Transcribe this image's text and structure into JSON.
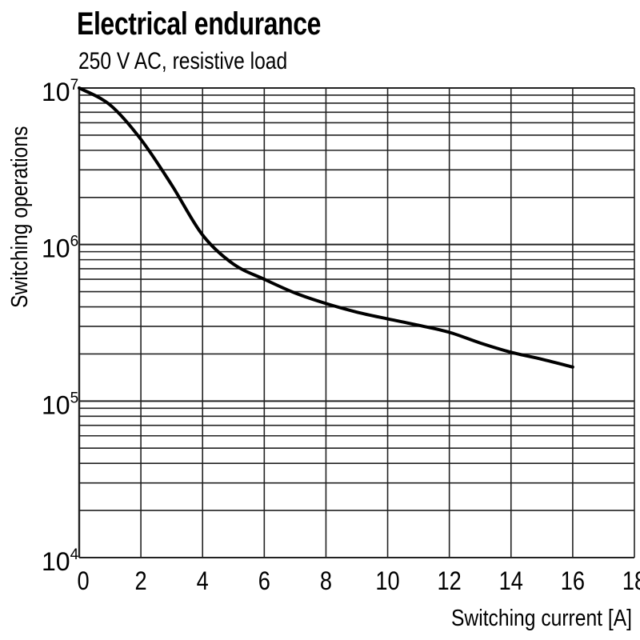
{
  "chart_data": {
    "type": "line",
    "title": "Electrical endurance",
    "subtitle": "250 V AC, resistive load",
    "xlabel": "Switching current [A]",
    "ylabel": "Switching operations",
    "xlim": [
      0,
      18
    ],
    "ylim": [
      10000,
      10000000
    ],
    "yscale": "log",
    "grid": true,
    "x_ticks": [
      "0",
      "2",
      "4",
      "6",
      "8",
      "10",
      "12",
      "14",
      "16",
      "18"
    ],
    "y_ticks": [
      {
        "base": "10",
        "exp": "4"
      },
      {
        "base": "10",
        "exp": "5"
      },
      {
        "base": "10",
        "exp": "6"
      },
      {
        "base": "10",
        "exp": "7"
      }
    ],
    "series": [
      {
        "color": "#000000",
        "x": [
          0,
          1,
          2,
          3,
          4,
          5,
          6,
          7,
          8,
          9,
          10,
          11,
          12,
          13,
          14,
          15,
          16
        ],
        "y": [
          10000000,
          7800000,
          4700000,
          2400000,
          1150000,
          750000,
          600000,
          490000,
          420000,
          370000,
          335000,
          305000,
          275000,
          235000,
          205000,
          185000,
          165000
        ]
      }
    ]
  }
}
